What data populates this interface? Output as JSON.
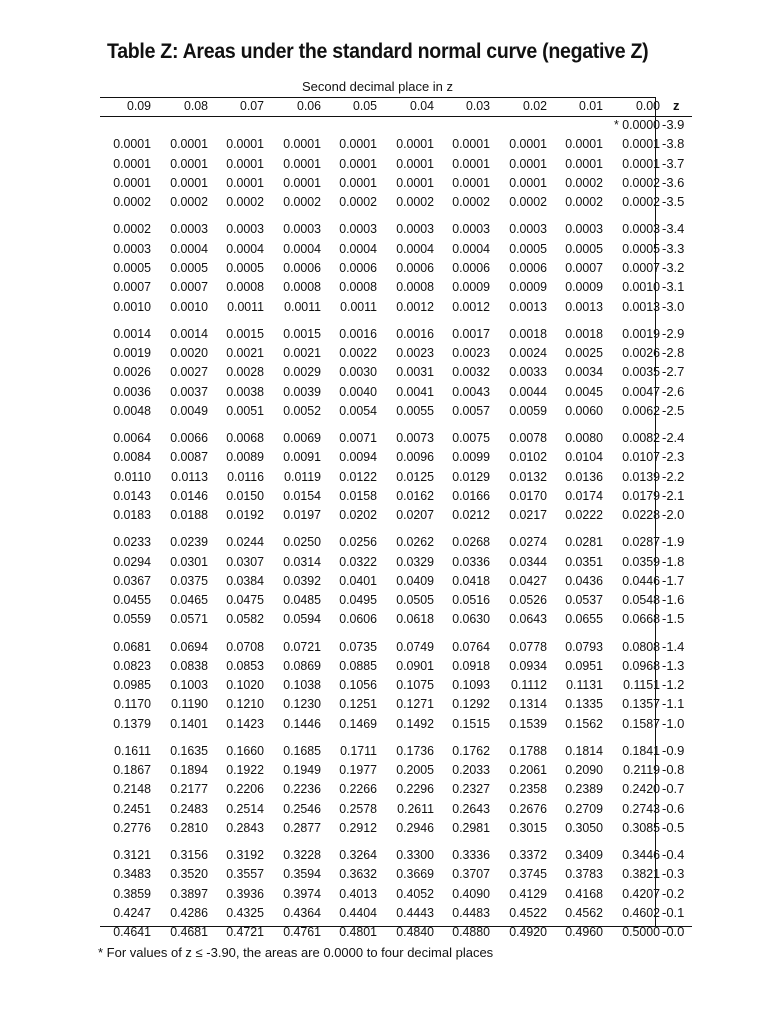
{
  "title": "Table Z: Areas under the standard normal curve (negative Z)",
  "subtitle": "Second decimal place in z",
  "columns": [
    "0.09",
    "0.08",
    "0.07",
    "0.06",
    "0.05",
    "0.04",
    "0.03",
    "0.02",
    "0.01",
    "0.00"
  ],
  "z_header": "z",
  "groups": [
    [
      {
        "z": "-3.9",
        "values": [
          "",
          "",
          "",
          "",
          "",
          "",
          "",
          "",
          "",
          "* 0.0000"
        ]
      },
      {
        "z": "-3.8",
        "values": [
          "0.0001",
          "0.0001",
          "0.0001",
          "0.0001",
          "0.0001",
          "0.0001",
          "0.0001",
          "0.0001",
          "0.0001",
          "0.0001"
        ]
      },
      {
        "z": "-3.7",
        "values": [
          "0.0001",
          "0.0001",
          "0.0001",
          "0.0001",
          "0.0001",
          "0.0001",
          "0.0001",
          "0.0001",
          "0.0001",
          "0.0001"
        ]
      },
      {
        "z": "-3.6",
        "values": [
          "0.0001",
          "0.0001",
          "0.0001",
          "0.0001",
          "0.0001",
          "0.0001",
          "0.0001",
          "0.0001",
          "0.0002",
          "0.0002"
        ]
      },
      {
        "z": "-3.5",
        "values": [
          "0.0002",
          "0.0002",
          "0.0002",
          "0.0002",
          "0.0002",
          "0.0002",
          "0.0002",
          "0.0002",
          "0.0002",
          "0.0002"
        ]
      }
    ],
    [
      {
        "z": "-3.4",
        "values": [
          "0.0002",
          "0.0003",
          "0.0003",
          "0.0003",
          "0.0003",
          "0.0003",
          "0.0003",
          "0.0003",
          "0.0003",
          "0.0003"
        ]
      },
      {
        "z": "-3.3",
        "values": [
          "0.0003",
          "0.0004",
          "0.0004",
          "0.0004",
          "0.0004",
          "0.0004",
          "0.0004",
          "0.0005",
          "0.0005",
          "0.0005"
        ]
      },
      {
        "z": "-3.2",
        "values": [
          "0.0005",
          "0.0005",
          "0.0005",
          "0.0006",
          "0.0006",
          "0.0006",
          "0.0006",
          "0.0006",
          "0.0007",
          "0.0007"
        ]
      },
      {
        "z": "-3.1",
        "values": [
          "0.0007",
          "0.0007",
          "0.0008",
          "0.0008",
          "0.0008",
          "0.0008",
          "0.0009",
          "0.0009",
          "0.0009",
          "0.0010"
        ]
      },
      {
        "z": "-3.0",
        "values": [
          "0.0010",
          "0.0010",
          "0.0011",
          "0.0011",
          "0.0011",
          "0.0012",
          "0.0012",
          "0.0013",
          "0.0013",
          "0.0013"
        ]
      }
    ],
    [
      {
        "z": "-2.9",
        "values": [
          "0.0014",
          "0.0014",
          "0.0015",
          "0.0015",
          "0.0016",
          "0.0016",
          "0.0017",
          "0.0018",
          "0.0018",
          "0.0019"
        ]
      },
      {
        "z": "-2.8",
        "values": [
          "0.0019",
          "0.0020",
          "0.0021",
          "0.0021",
          "0.0022",
          "0.0023",
          "0.0023",
          "0.0024",
          "0.0025",
          "0.0026"
        ]
      },
      {
        "z": "-2.7",
        "values": [
          "0.0026",
          "0.0027",
          "0.0028",
          "0.0029",
          "0.0030",
          "0.0031",
          "0.0032",
          "0.0033",
          "0.0034",
          "0.0035"
        ]
      },
      {
        "z": "-2.6",
        "values": [
          "0.0036",
          "0.0037",
          "0.0038",
          "0.0039",
          "0.0040",
          "0.0041",
          "0.0043",
          "0.0044",
          "0.0045",
          "0.0047"
        ]
      },
      {
        "z": "-2.5",
        "values": [
          "0.0048",
          "0.0049",
          "0.0051",
          "0.0052",
          "0.0054",
          "0.0055",
          "0.0057",
          "0.0059",
          "0.0060",
          "0.0062"
        ]
      }
    ],
    [
      {
        "z": "-2.4",
        "values": [
          "0.0064",
          "0.0066",
          "0.0068",
          "0.0069",
          "0.0071",
          "0.0073",
          "0.0075",
          "0.0078",
          "0.0080",
          "0.0082"
        ]
      },
      {
        "z": "-2.3",
        "values": [
          "0.0084",
          "0.0087",
          "0.0089",
          "0.0091",
          "0.0094",
          "0.0096",
          "0.0099",
          "0.0102",
          "0.0104",
          "0.0107"
        ]
      },
      {
        "z": "-2.2",
        "values": [
          "0.0110",
          "0.0113",
          "0.0116",
          "0.0119",
          "0.0122",
          "0.0125",
          "0.0129",
          "0.0132",
          "0.0136",
          "0.0139"
        ]
      },
      {
        "z": "-2.1",
        "values": [
          "0.0143",
          "0.0146",
          "0.0150",
          "0.0154",
          "0.0158",
          "0.0162",
          "0.0166",
          "0.0170",
          "0.0174",
          "0.0179"
        ]
      },
      {
        "z": "-2.0",
        "values": [
          "0.0183",
          "0.0188",
          "0.0192",
          "0.0197",
          "0.0202",
          "0.0207",
          "0.0212",
          "0.0217",
          "0.0222",
          "0.0228"
        ]
      }
    ],
    [
      {
        "z": "-1.9",
        "values": [
          "0.0233",
          "0.0239",
          "0.0244",
          "0.0250",
          "0.0256",
          "0.0262",
          "0.0268",
          "0.0274",
          "0.0281",
          "0.0287"
        ]
      },
      {
        "z": "-1.8",
        "values": [
          "0.0294",
          "0.0301",
          "0.0307",
          "0.0314",
          "0.0322",
          "0.0329",
          "0.0336",
          "0.0344",
          "0.0351",
          "0.0359"
        ]
      },
      {
        "z": "-1.7",
        "values": [
          "0.0367",
          "0.0375",
          "0.0384",
          "0.0392",
          "0.0401",
          "0.0409",
          "0.0418",
          "0.0427",
          "0.0436",
          "0.0446"
        ]
      },
      {
        "z": "-1.6",
        "values": [
          "0.0455",
          "0.0465",
          "0.0475",
          "0.0485",
          "0.0495",
          "0.0505",
          "0.0516",
          "0.0526",
          "0.0537",
          "0.0548"
        ]
      },
      {
        "z": "-1.5",
        "values": [
          "0.0559",
          "0.0571",
          "0.0582",
          "0.0594",
          "0.0606",
          "0.0618",
          "0.0630",
          "0.0643",
          "0.0655",
          "0.0668"
        ]
      }
    ],
    [
      {
        "z": "-1.4",
        "values": [
          "0.0681",
          "0.0694",
          "0.0708",
          "0.0721",
          "0.0735",
          "0.0749",
          "0.0764",
          "0.0778",
          "0.0793",
          "0.0808"
        ]
      },
      {
        "z": "-1.3",
        "values": [
          "0.0823",
          "0.0838",
          "0.0853",
          "0.0869",
          "0.0885",
          "0.0901",
          "0.0918",
          "0.0934",
          "0.0951",
          "0.0968"
        ]
      },
      {
        "z": "-1.2",
        "values": [
          "0.0985",
          "0.1003",
          "0.1020",
          "0.1038",
          "0.1056",
          "0.1075",
          "0.1093",
          "0.1112",
          "0.1131",
          "0.1151"
        ]
      },
      {
        "z": "-1.1",
        "values": [
          "0.1170",
          "0.1190",
          "0.1210",
          "0.1230",
          "0.1251",
          "0.1271",
          "0.1292",
          "0.1314",
          "0.1335",
          "0.1357"
        ]
      },
      {
        "z": "-1.0",
        "values": [
          "0.1379",
          "0.1401",
          "0.1423",
          "0.1446",
          "0.1469",
          "0.1492",
          "0.1515",
          "0.1539",
          "0.1562",
          "0.1587"
        ]
      }
    ],
    [
      {
        "z": "-0.9",
        "values": [
          "0.1611",
          "0.1635",
          "0.1660",
          "0.1685",
          "0.1711",
          "0.1736",
          "0.1762",
          "0.1788",
          "0.1814",
          "0.1841"
        ]
      },
      {
        "z": "-0.8",
        "values": [
          "0.1867",
          "0.1894",
          "0.1922",
          "0.1949",
          "0.1977",
          "0.2005",
          "0.2033",
          "0.2061",
          "0.2090",
          "0.2119"
        ]
      },
      {
        "z": "-0.7",
        "values": [
          "0.2148",
          "0.2177",
          "0.2206",
          "0.2236",
          "0.2266",
          "0.2296",
          "0.2327",
          "0.2358",
          "0.2389",
          "0.2420"
        ]
      },
      {
        "z": "-0.6",
        "values": [
          "0.2451",
          "0.2483",
          "0.2514",
          "0.2546",
          "0.2578",
          "0.2611",
          "0.2643",
          "0.2676",
          "0.2709",
          "0.2743"
        ]
      },
      {
        "z": "-0.5",
        "values": [
          "0.2776",
          "0.2810",
          "0.2843",
          "0.2877",
          "0.2912",
          "0.2946",
          "0.2981",
          "0.3015",
          "0.3050",
          "0.3085"
        ]
      }
    ],
    [
      {
        "z": "-0.4",
        "values": [
          "0.3121",
          "0.3156",
          "0.3192",
          "0.3228",
          "0.3264",
          "0.3300",
          "0.3336",
          "0.3372",
          "0.3409",
          "0.3446"
        ]
      },
      {
        "z": "-0.3",
        "values": [
          "0.3483",
          "0.3520",
          "0.3557",
          "0.3594",
          "0.3632",
          "0.3669",
          "0.3707",
          "0.3745",
          "0.3783",
          "0.3821"
        ]
      },
      {
        "z": "-0.2",
        "values": [
          "0.3859",
          "0.3897",
          "0.3936",
          "0.3974",
          "0.4013",
          "0.4052",
          "0.4090",
          "0.4129",
          "0.4168",
          "0.4207"
        ]
      },
      {
        "z": "-0.1",
        "values": [
          "0.4247",
          "0.4286",
          "0.4325",
          "0.4364",
          "0.4404",
          "0.4443",
          "0.4483",
          "0.4522",
          "0.4562",
          "0.4602"
        ]
      },
      {
        "z": "-0.0",
        "values": [
          "0.4641",
          "0.4681",
          "0.4721",
          "0.4761",
          "0.4801",
          "0.4840",
          "0.4880",
          "0.4920",
          "0.4960",
          "0.5000"
        ]
      }
    ]
  ],
  "footnote": "* For values of z ≤ -3.90, the areas are 0.0000 to four decimal places"
}
